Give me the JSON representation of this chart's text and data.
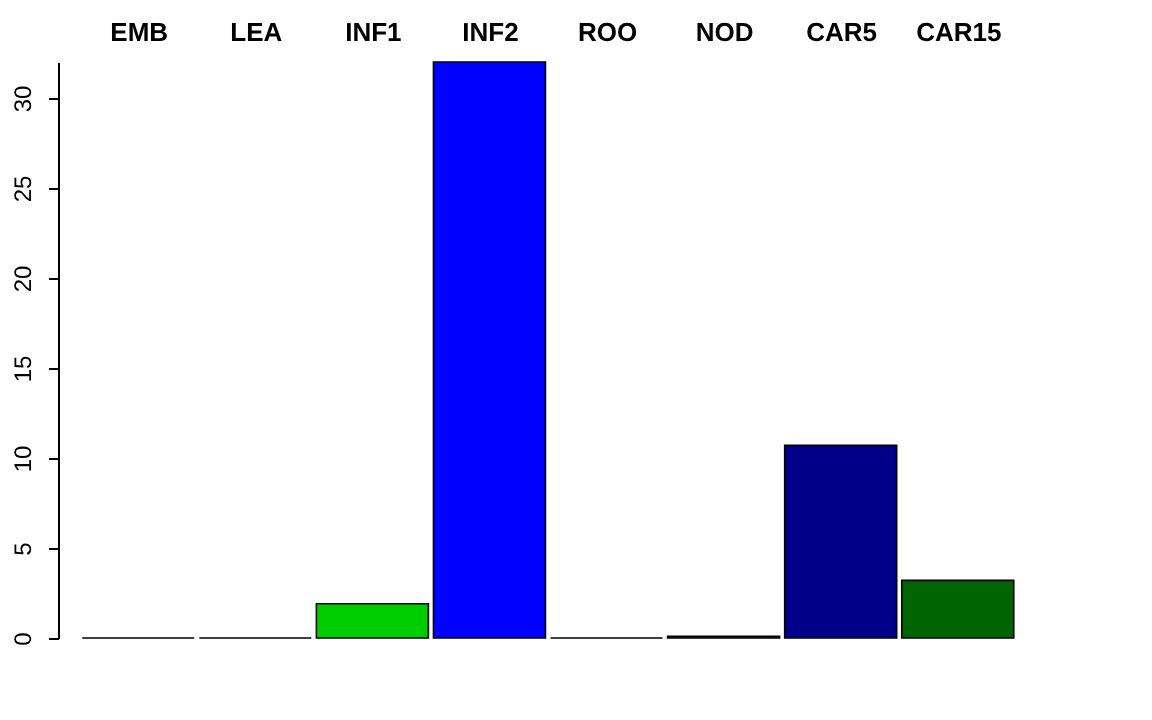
{
  "chart_data": {
    "type": "bar",
    "categories": [
      "EMB",
      "LEA",
      "INF1",
      "INF2",
      "ROO",
      "NOD",
      "CAR5",
      "CAR15"
    ],
    "values": [
      0,
      0,
      1.9,
      32.0,
      0,
      0.1,
      10.7,
      3.2
    ],
    "colors": [
      "#000000",
      "#000000",
      "#00cd00",
      "#0000ff",
      "#000000",
      "#551a8b",
      "#00008b",
      "#006400"
    ],
    "ylim": [
      0,
      32
    ],
    "yticks": [
      0,
      5,
      10,
      15,
      20,
      25,
      30
    ],
    "grid": false
  }
}
